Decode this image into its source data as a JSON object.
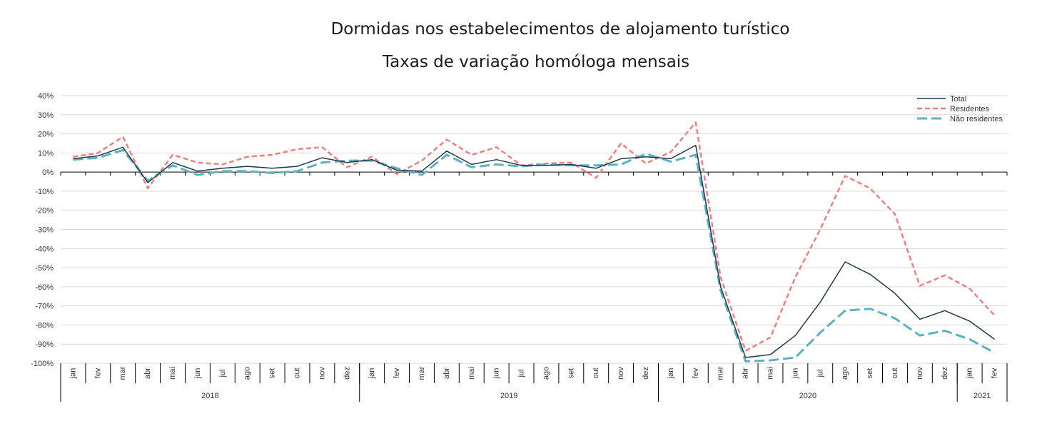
{
  "chart_data": {
    "type": "line",
    "title": "Dormidas nos estabelecimentos de alojamento turístico",
    "subtitle": "Taxas de variação homóloga mensais",
    "ylim": [
      -100,
      40
    ],
    "y_ticks": [
      "40%",
      "30%",
      "20%",
      "10%",
      "0%",
      "-10%",
      "-20%",
      "-30%",
      "-40%",
      "-50%",
      "-60%",
      "-70%",
      "-80%",
      "-90%",
      "-100%"
    ],
    "grid": true,
    "legend_position": "top-right",
    "categories": [
      "jan",
      "fev",
      "mar",
      "abr",
      "mai",
      "jun",
      "jul",
      "ago",
      "set",
      "out",
      "nov",
      "dez",
      "jan",
      "fev",
      "mar",
      "abr",
      "mai",
      "jun",
      "jul",
      "ago",
      "set",
      "out",
      "nov",
      "dez",
      "jan",
      "fev",
      "mar",
      "abr",
      "mai",
      "jun",
      "jul",
      "ago",
      "set",
      "out",
      "nov",
      "dez",
      "jan",
      "fev"
    ],
    "years": [
      {
        "label": "2018",
        "months": 12
      },
      {
        "label": "2019",
        "months": 12
      },
      {
        "label": "2020",
        "months": 12
      },
      {
        "label": "2021",
        "months": 2
      }
    ],
    "series": [
      {
        "name": "Total",
        "color": "#1f3a4d",
        "dash": "solid",
        "values": [
          7,
          8.5,
          13,
          -5.5,
          5,
          0.5,
          2,
          3,
          2,
          3,
          7.5,
          5,
          6.5,
          1,
          0.5,
          11,
          4,
          6.5,
          3.5,
          3.5,
          4,
          2,
          7,
          8,
          7,
          14,
          -60,
          -97,
          -95.5,
          -85.5,
          -68,
          -47,
          -53.5,
          -63.5,
          -77,
          -72.5,
          -78,
          -87.5
        ]
      },
      {
        "name": "Residentes",
        "color": "#f08080",
        "dash": "short",
        "values": [
          8,
          10,
          18.5,
          -8.5,
          9,
          5,
          4,
          8,
          9,
          12,
          13,
          2.5,
          8,
          -1,
          6,
          17,
          9,
          13,
          3.5,
          4.5,
          5,
          -3,
          15,
          4.5,
          10.5,
          26,
          -55,
          -93.5,
          -86.5,
          -55,
          -30,
          -2,
          -8.5,
          -22,
          -59.5,
          -54,
          -61,
          -75
        ]
      },
      {
        "name": "Não residentes",
        "color": "#5bb3c2",
        "dash": "long",
        "values": [
          6.5,
          7.5,
          11.5,
          -4.5,
          3.5,
          -1.5,
          0.5,
          0.5,
          -0.5,
          0.5,
          5,
          6,
          6,
          2,
          -1.5,
          9,
          2.5,
          4,
          3,
          4,
          3.5,
          3.5,
          4,
          9.5,
          5.5,
          9,
          -62,
          -99,
          -98.5,
          -97,
          -84,
          -72.5,
          -71.5,
          -76.5,
          -85.5,
          -83,
          -87.5,
          -94.5
        ]
      }
    ]
  }
}
